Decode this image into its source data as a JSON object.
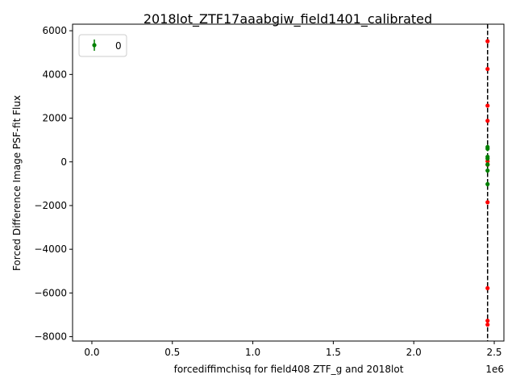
{
  "chart_data": {
    "type": "scatter",
    "title": "2018lot_ZTF17aaabgiw_field1401_calibrated",
    "xlabel": "forcediffimchisq for field408 ZTF_g and 2018lot",
    "ylabel": "Forced Difference Image PSF-fit Flux",
    "x_offset_label": "1e6",
    "xlim": [
      -0.12,
      2.56
    ],
    "ylim": [
      -8200,
      6300
    ],
    "x_ticks": [
      0.0,
      0.5,
      1.0,
      1.5,
      2.0,
      2.5
    ],
    "x_tick_labels": [
      "0.0",
      "0.5",
      "1.0",
      "1.5",
      "2.0",
      "2.5"
    ],
    "y_ticks": [
      -8000,
      -6000,
      -4000,
      -2000,
      0,
      2000,
      4000,
      6000
    ],
    "y_tick_labels": [
      "−8000",
      "−6000",
      "−4000",
      "−2000",
      "0",
      "2000",
      "4000",
      "6000"
    ],
    "grid": false,
    "legend": {
      "placement": "top-left",
      "entries": [
        {
          "label": "0",
          "color": "#008000",
          "marker": "errorbar-dot"
        }
      ]
    },
    "vline": {
      "x": 2.4585,
      "style": "dashed",
      "color": "#000000"
    },
    "series": [
      {
        "name": "0",
        "color": "#008000",
        "x": [
          2.4585,
          2.4585,
          2.4585,
          2.4585,
          2.4585,
          2.4585,
          2.4585
        ],
        "y": [
          600,
          680,
          230,
          150,
          -120,
          -400,
          -1020
        ]
      },
      {
        "color": "#ff0000",
        "x": [
          2.4585,
          2.4585,
          2.4585,
          2.4585,
          2.4585,
          2.4585,
          2.4585,
          2.4585,
          2.4585,
          2.4585
        ],
        "y": [
          5520,
          4250,
          2570,
          1880,
          30,
          -130,
          -1850,
          -5780,
          -7270,
          -7450
        ]
      }
    ]
  }
}
